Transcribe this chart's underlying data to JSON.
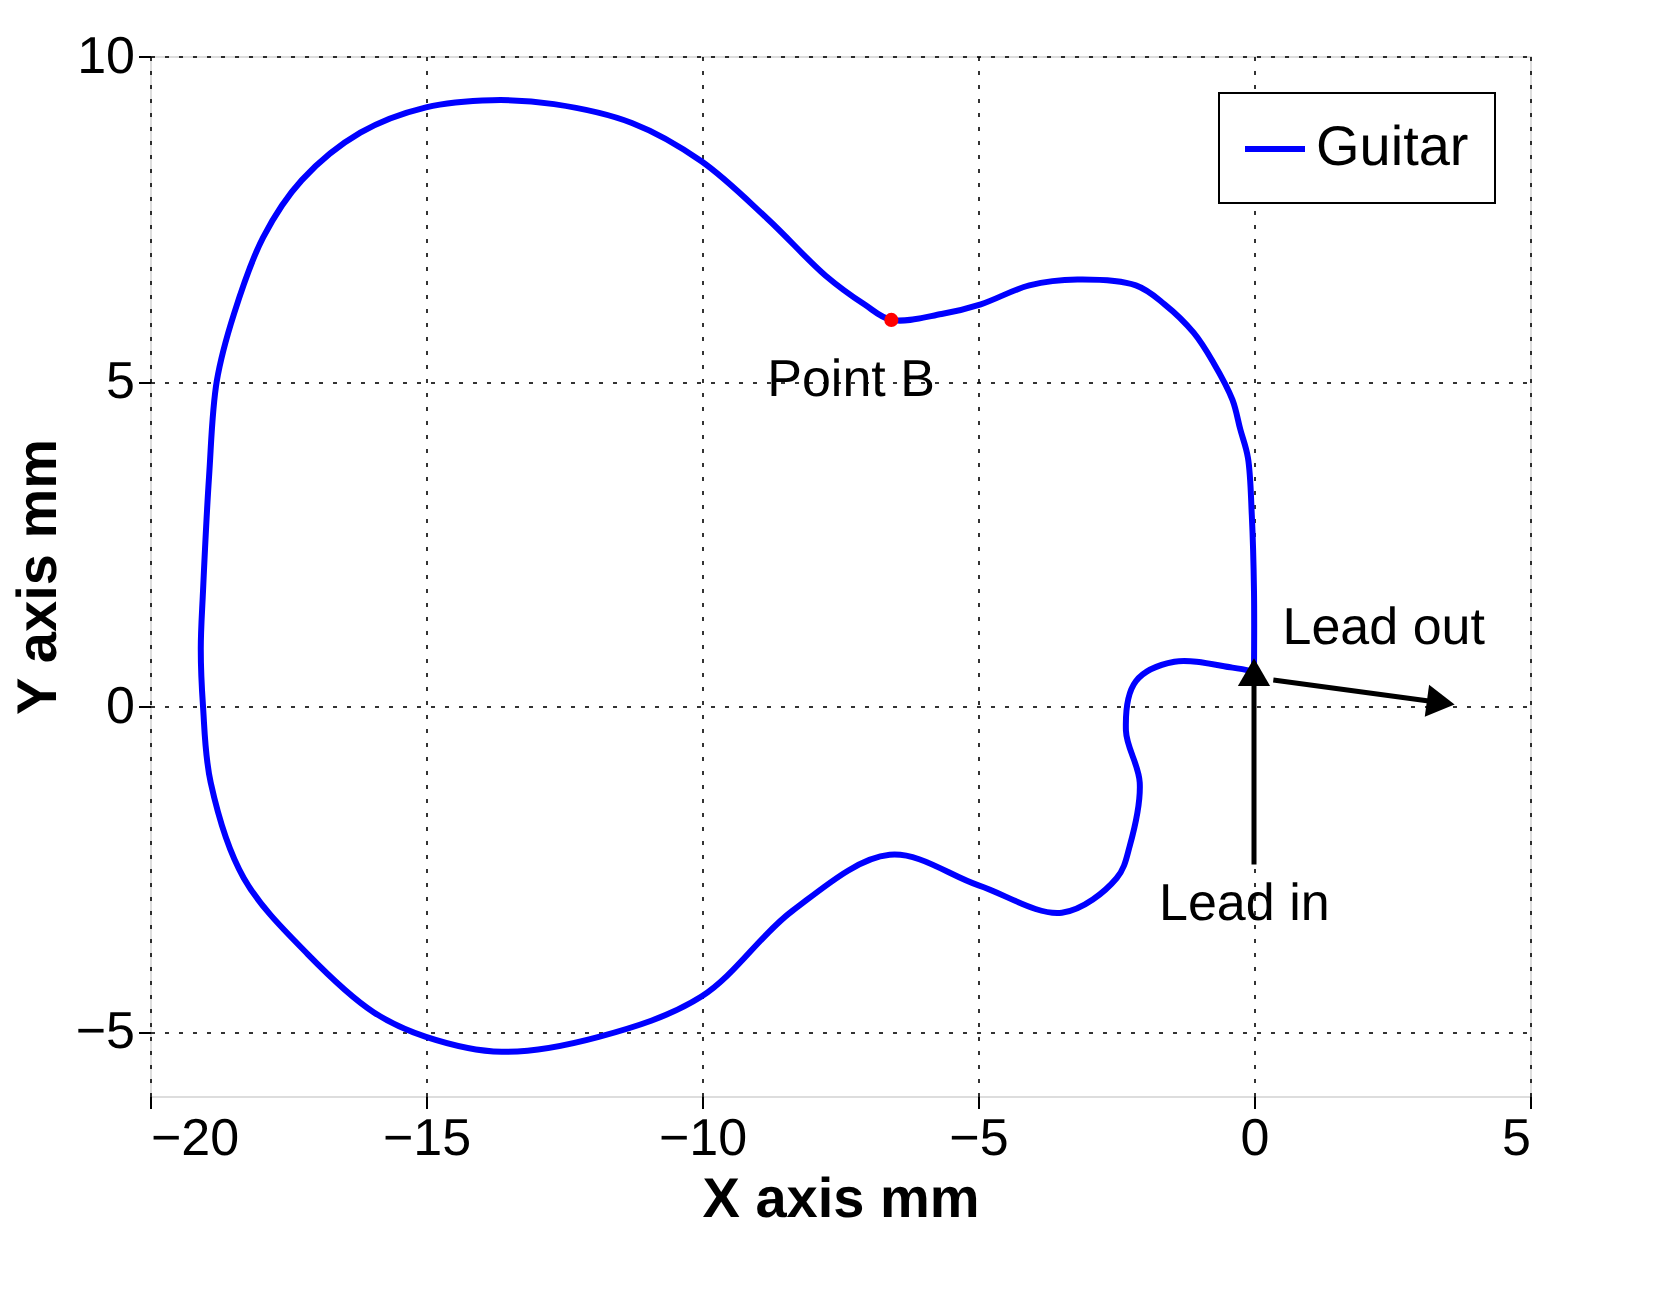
{
  "chart_data": {
    "type": "line",
    "xlabel": "X axis mm",
    "ylabel": "Y axis mm",
    "xlim": [
      -20,
      5
    ],
    "xticks": [
      -20,
      -15,
      -10,
      -5,
      0,
      5
    ],
    "ylim": [
      -6,
      10
    ],
    "yticks": [
      -5,
      0,
      5,
      10
    ],
    "grid": true,
    "legend": "top right",
    "series": [
      {
        "name": "Guitar",
        "color": "#0000ff",
        "x": [
          0,
          0,
          -0.04,
          -0.11,
          -0.25,
          -0.39,
          -0.74,
          -1.09,
          -1.62,
          -2.14,
          -3.2,
          -4.07,
          -4.95,
          -5.66,
          -6.57,
          -7.06,
          -7.76,
          -8.82,
          -10.01,
          -11.27,
          -12.68,
          -13.8,
          -15.0,
          -16.19,
          -17.25,
          -17.95,
          -18.48,
          -18.79,
          -18.93,
          -19.04,
          -19.08,
          -19.04,
          -18.9,
          -18.3,
          -17.14,
          -15.95,
          -15.0,
          -13.63,
          -11.87,
          -10.01,
          -8.36,
          -6.6,
          -4.99,
          -3.48,
          -2.49,
          -2.25,
          -2.07,
          -2.32,
          -2.14,
          -1.44,
          -0.39,
          0
        ],
        "values": [
          0.56,
          1.76,
          2.94,
          3.82,
          4.26,
          4.71,
          5.29,
          5.74,
          6.18,
          6.47,
          6.56,
          6.47,
          6.18,
          6.03,
          5.94,
          6.18,
          6.62,
          7.5,
          8.38,
          8.97,
          9.26,
          9.32,
          9.21,
          8.82,
          8.09,
          7.21,
          6.03,
          5.0,
          3.53,
          1.76,
          0.88,
          0,
          -1.18,
          -2.65,
          -3.82,
          -4.71,
          -5.09,
          -5.32,
          -5.09,
          -4.47,
          -3.15,
          -2.29,
          -2.76,
          -3.18,
          -2.65,
          -2.15,
          -1.18,
          -0.38,
          0.38,
          0.68,
          0.59,
          0.53
        ]
      },
      {
        "type": "scatter",
        "color": "#ff0000",
        "x": [
          -6.57
        ],
        "values": [
          5.94
        ]
      },
      {
        "type": "line",
        "color": "#000000",
        "marker": "triangle",
        "x": [
          0,
          0
        ],
        "values": [
          -2.44,
          0.45
        ]
      },
      {
        "type": "line",
        "color": "#000000",
        "marker": "triangle",
        "x": [
          0.35,
          3.3
        ],
        "values": [
          0.4,
          0.06
        ]
      }
    ],
    "annotations": [
      "Point B",
      "Lead in",
      "Lead out"
    ]
  }
}
